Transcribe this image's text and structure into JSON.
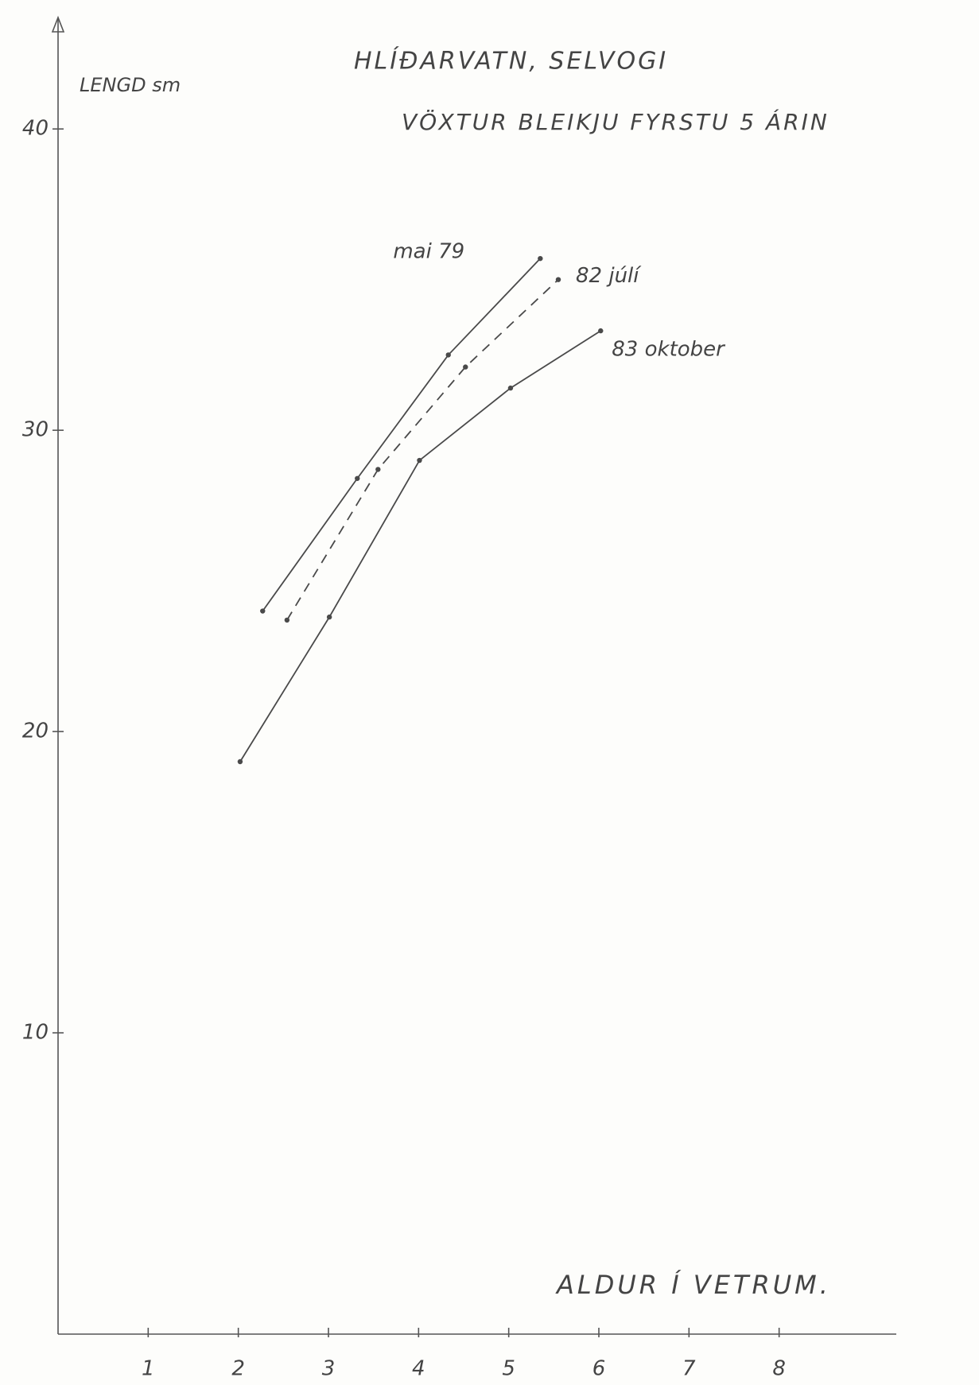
{
  "chart_data": {
    "type": "line",
    "title": "HLÍÐARVATN, SELVOGI",
    "subtitle": "VÖXTUR BLEIKJU FYRSTU 5 ÁRIN",
    "y_label": "LENGD sm",
    "x_label": "ALDUR Í VETRUM.",
    "xlim": [
      0,
      9.3
    ],
    "ylim": [
      0,
      43.7
    ],
    "xticks": [
      1,
      2,
      3,
      4,
      5,
      6,
      7,
      8
    ],
    "yticks": [
      10,
      20,
      30,
      40
    ],
    "series": [
      {
        "name": "mai 79",
        "color": "#4a4a4a",
        "dashed": false,
        "x": [
          2.27,
          3.32,
          4.33,
          5.35
        ],
        "values": [
          24.0,
          28.4,
          32.5,
          35.7
        ]
      },
      {
        "name": "82 júlí",
        "color": "#4a4a4a",
        "dashed": true,
        "x": [
          2.54,
          3.55,
          4.52,
          5.55
        ],
        "values": [
          23.7,
          28.7,
          32.1,
          35.0
        ]
      },
      {
        "name": "83 oktober",
        "color": "#4a4a4a",
        "dashed": false,
        "x": [
          2.02,
          3.01,
          4.01,
          5.02,
          6.02
        ],
        "values": [
          19.0,
          23.8,
          29.0,
          31.4,
          33.3
        ]
      }
    ]
  }
}
